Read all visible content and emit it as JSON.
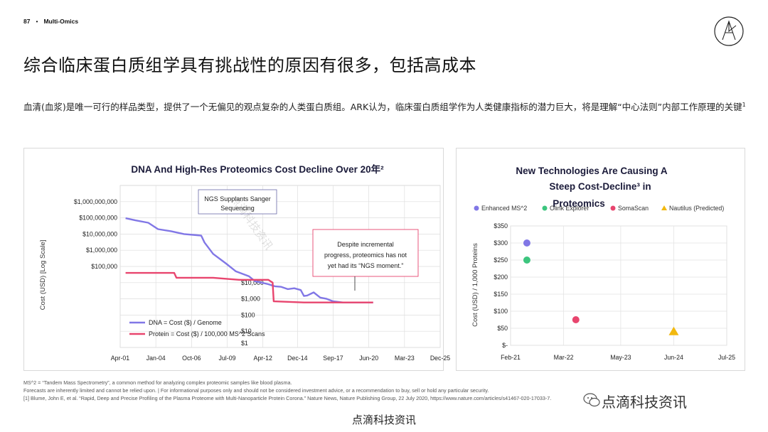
{
  "header": {
    "page_number": "87",
    "separator": "•",
    "section": "Multi-Omics"
  },
  "title": "综合临床蛋白质组学具有挑战性的原因有很多，包括高成本",
  "intro": {
    "text": "血清(血浆)是唯一可行的样品类型，提供了一个无偏见的观点复杂的人类蛋白质组。ARK认为，临床蛋白质组学作为人类健康指标的潜力巨大，将是理解“中心法则”内部工作原理的关键",
    "footnote_mark": "1"
  },
  "chart_data": [
    {
      "type": "line",
      "title": "DNA And High-Res Proteomics Cost Decline Over 20年²",
      "ylabel": "Cost (USD) [Log Scale]",
      "y_scale": "log",
      "ylim": [
        1,
        10000000000
      ],
      "y_tick_values": [
        1000000000,
        100000000,
        10000000,
        1000000,
        100000,
        10000,
        1000,
        100,
        10,
        1
      ],
      "y_tick_labels": [
        "$1,000,000,000",
        "$100,000,000",
        "$10,000,000",
        "$1,000,000",
        "$100,000",
        "$10,000",
        "$1,000",
        "$100",
        "$10",
        "$1"
      ],
      "x_tick_labels": [
        "Apr-01",
        "Jan-04",
        "Oct-06",
        "Jul-09",
        "Apr-12",
        "Dec-14",
        "Sep-17",
        "Jun-20",
        "Mar-23",
        "Dec-25"
      ],
      "x_tick_dates": [
        "2001-04",
        "2004-01",
        "2006-10",
        "2009-07",
        "2012-04",
        "2014-12",
        "2017-09",
        "2020-06",
        "2023-03",
        "2025-12"
      ],
      "xlim": [
        "2001-04",
        "2025-12"
      ],
      "grid": true,
      "legend_position": "bottom-left",
      "series": [
        {
          "name": "DNA = Cost ($) / Genome",
          "color": "#8177e6",
          "x": [
            "2001-09",
            "2002-06",
            "2003-06",
            "2004-03",
            "2005-03",
            "2006-03",
            "2007-03",
            "2007-07",
            "2007-10",
            "2008-06",
            "2009-06",
            "2010-03",
            "2011-03",
            "2011-09",
            "2012-03",
            "2012-09",
            "2013-03",
            "2013-09",
            "2014-03",
            "2014-09",
            "2015-03",
            "2015-06",
            "2015-09",
            "2016-03",
            "2016-09",
            "2017-03",
            "2017-09",
            "2018-06",
            "2019-03",
            "2019-09",
            "2020-06",
            "2020-10"
          ],
          "y": [
            95000000,
            70000000,
            50000000,
            20000000,
            15000000,
            10000000,
            8500000,
            8000000,
            3000000,
            600000,
            150000,
            50000,
            25000,
            12000,
            10000,
            8000,
            6000,
            5500,
            4000,
            4500,
            3500,
            1500,
            1600,
            2500,
            1200,
            1000,
            700,
            600,
            600,
            600,
            600,
            600
          ]
        },
        {
          "name": "Protein = Cost ($) / 100,000 MS^2 Scans",
          "color": "#e8456e",
          "x": [
            "2001-09",
            "2005-06",
            "2005-08",
            "2008-06",
            "2010-06",
            "2012-09",
            "2013-01",
            "2013-02",
            "2015-06",
            "2018-06",
            "2020-10"
          ],
          "y": [
            40000,
            40000,
            20000,
            20000,
            15000,
            15000,
            10000,
            700,
            600,
            600,
            600
          ]
        }
      ],
      "annotations": [
        {
          "text": "NGS Supplants Sanger Sequencing"
        },
        {
          "text": "Despite incremental progress, proteomics has not yet had its “NGS moment.”"
        }
      ]
    },
    {
      "type": "scatter",
      "title_lines": [
        "New Technologies Are Causing A",
        "Steep Cost-Decline³ in",
        "Proteomics"
      ],
      "ylabel": "Cost (USD) / 1,000 Proteins",
      "ylim": [
        0,
        350
      ],
      "y_tick_values": [
        350,
        300,
        250,
        200,
        150,
        100,
        50,
        0
      ],
      "y_tick_labels": [
        "$350",
        "$300",
        "$250",
        "$200",
        "$150",
        "$100",
        "$50",
        "$-"
      ],
      "x_tick_labels": [
        "Feb-21",
        "Mar-22",
        "May-23",
        "Jun-24",
        "Jul-25"
      ],
      "x_tick_dates": [
        "2021-02",
        "2022-03",
        "2023-05",
        "2024-06",
        "2025-07"
      ],
      "xlim": [
        "2021-02",
        "2025-07"
      ],
      "grid": true,
      "legend_position": "top",
      "series": [
        {
          "name": "Enhanced MS^2",
          "color": "#8177e6",
          "marker": "circle",
          "x": [
            "2021-06"
          ],
          "y": [
            300
          ]
        },
        {
          "name": "Olink Explorer",
          "color": "#3cc57e",
          "marker": "circle",
          "x": [
            "2021-06"
          ],
          "y": [
            250
          ]
        },
        {
          "name": "SomaScan",
          "color": "#e8456e",
          "marker": "circle",
          "x": [
            "2022-06"
          ],
          "y": [
            75
          ]
        },
        {
          "name": "Nautilus (Predicted)",
          "color": "#f2b90f",
          "marker": "triangle",
          "x": [
            "2024-06"
          ],
          "y": [
            40
          ]
        }
      ]
    }
  ],
  "watermarks": {
    "chart": "点滴科技资讯",
    "brand": "点滴科技资讯"
  },
  "footnotes": [
    "MS^2 = “Tandem Mass Spectrometry”, a common method for analyzing complex proteomic samples like blood plasma.",
    "Forecasts are inherently limited and cannot be relied upon. | For informational purposes only and should not be considered investment advice, or a recommendation to buy, sell or hold any particular security.",
    "[1] Blume, John E, et al. “Rapid, Deep and Precise Profiling of the Plasma Proteome with Multi-Nanoparticle Protein Corona.” Nature News, Nature Publishing Group, 22 July 2020, https://www.nature.com/articles/s41467-020-17033-7."
  ],
  "credit": "点滴科技资讯"
}
